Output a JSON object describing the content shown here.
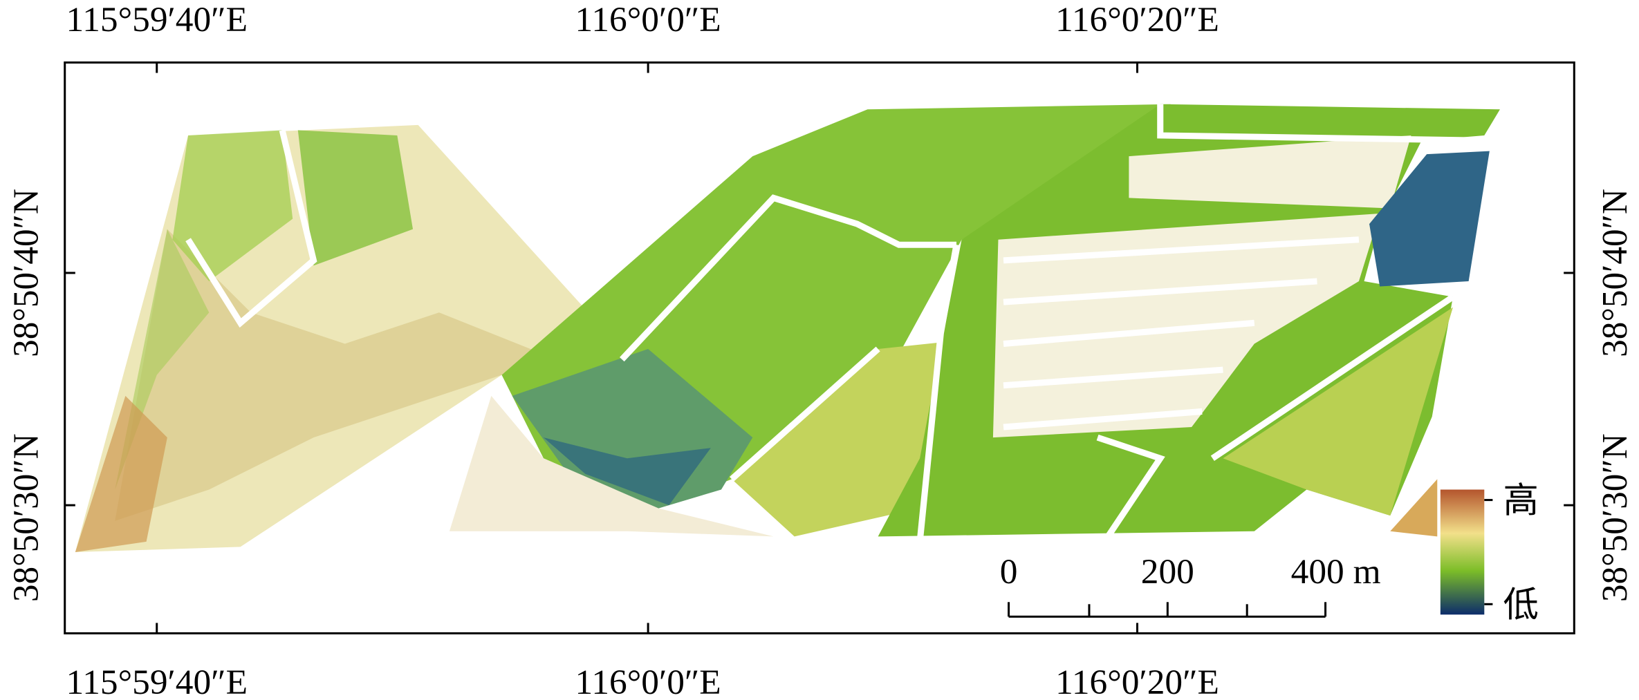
{
  "map": {
    "top_labels": [
      "115°59′40″E",
      "116°0′0″E",
      "116°0′20″E"
    ],
    "bottom_labels": [
      "115°59′40″E",
      "116°0′0″E",
      "116°0′20″E"
    ],
    "left_labels": [
      "38°50′40″N",
      "38°50′30″N"
    ],
    "right_labels": [
      "38°50′40″N",
      "38°50′30″N"
    ],
    "scale_bar": {
      "labels": [
        "0",
        "200",
        "400 m"
      ]
    },
    "legend": {
      "high": "高",
      "low": "低"
    }
  }
}
